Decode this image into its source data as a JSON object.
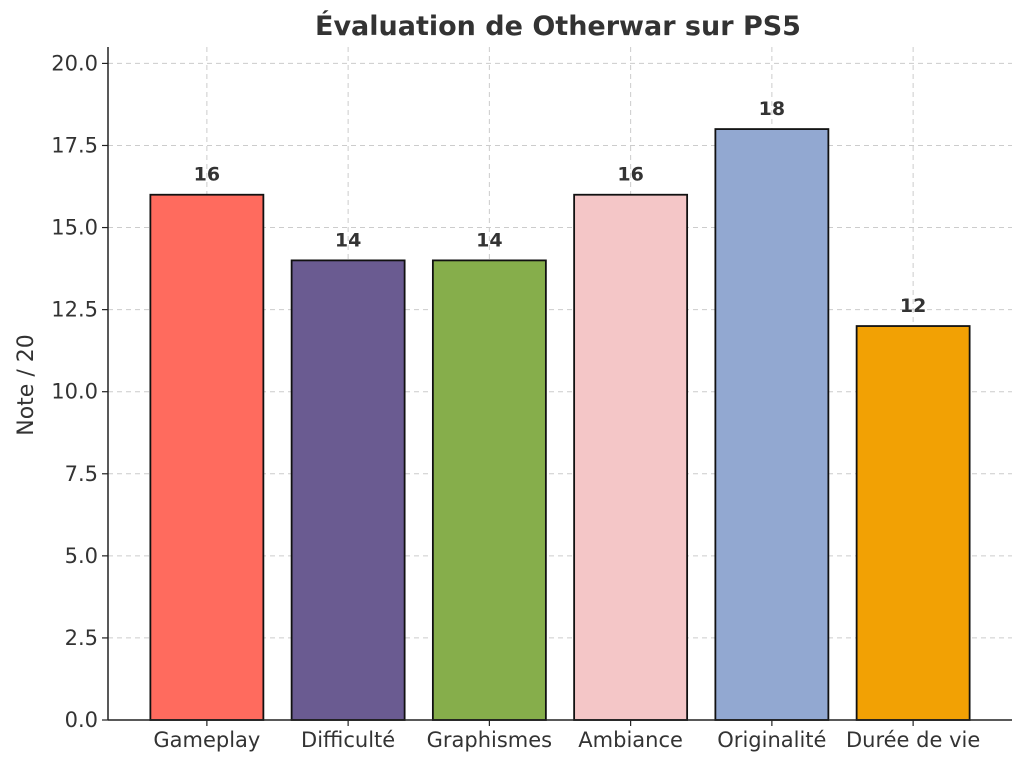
{
  "chart_data": {
    "type": "bar",
    "title": "Évaluation de Otherwar sur PS5",
    "xlabel": "",
    "ylabel": "Note / 20",
    "categories": [
      "Gameplay",
      "Difficulté",
      "Graphismes",
      "Ambiance",
      "Originalité",
      "Durée de vie"
    ],
    "values": [
      16,
      14,
      14,
      16,
      18,
      12
    ],
    "value_labels": [
      "16",
      "14",
      "14",
      "16",
      "18",
      "12"
    ],
    "colors": [
      "#ff6b5e",
      "#6a5b91",
      "#86ae4b",
      "#f4c6c7",
      "#92a8d1",
      "#f2a104"
    ],
    "ylim": [
      0,
      20.5
    ],
    "yticks": [
      0,
      2.5,
      5,
      7.5,
      10,
      12.5,
      15,
      17.5,
      20
    ],
    "ytick_labels": [
      "0.0",
      "2.5",
      "5.0",
      "7.5",
      "10.0",
      "12.5",
      "15.0",
      "17.5",
      "20.0"
    ],
    "grid": true,
    "legend": false
  }
}
